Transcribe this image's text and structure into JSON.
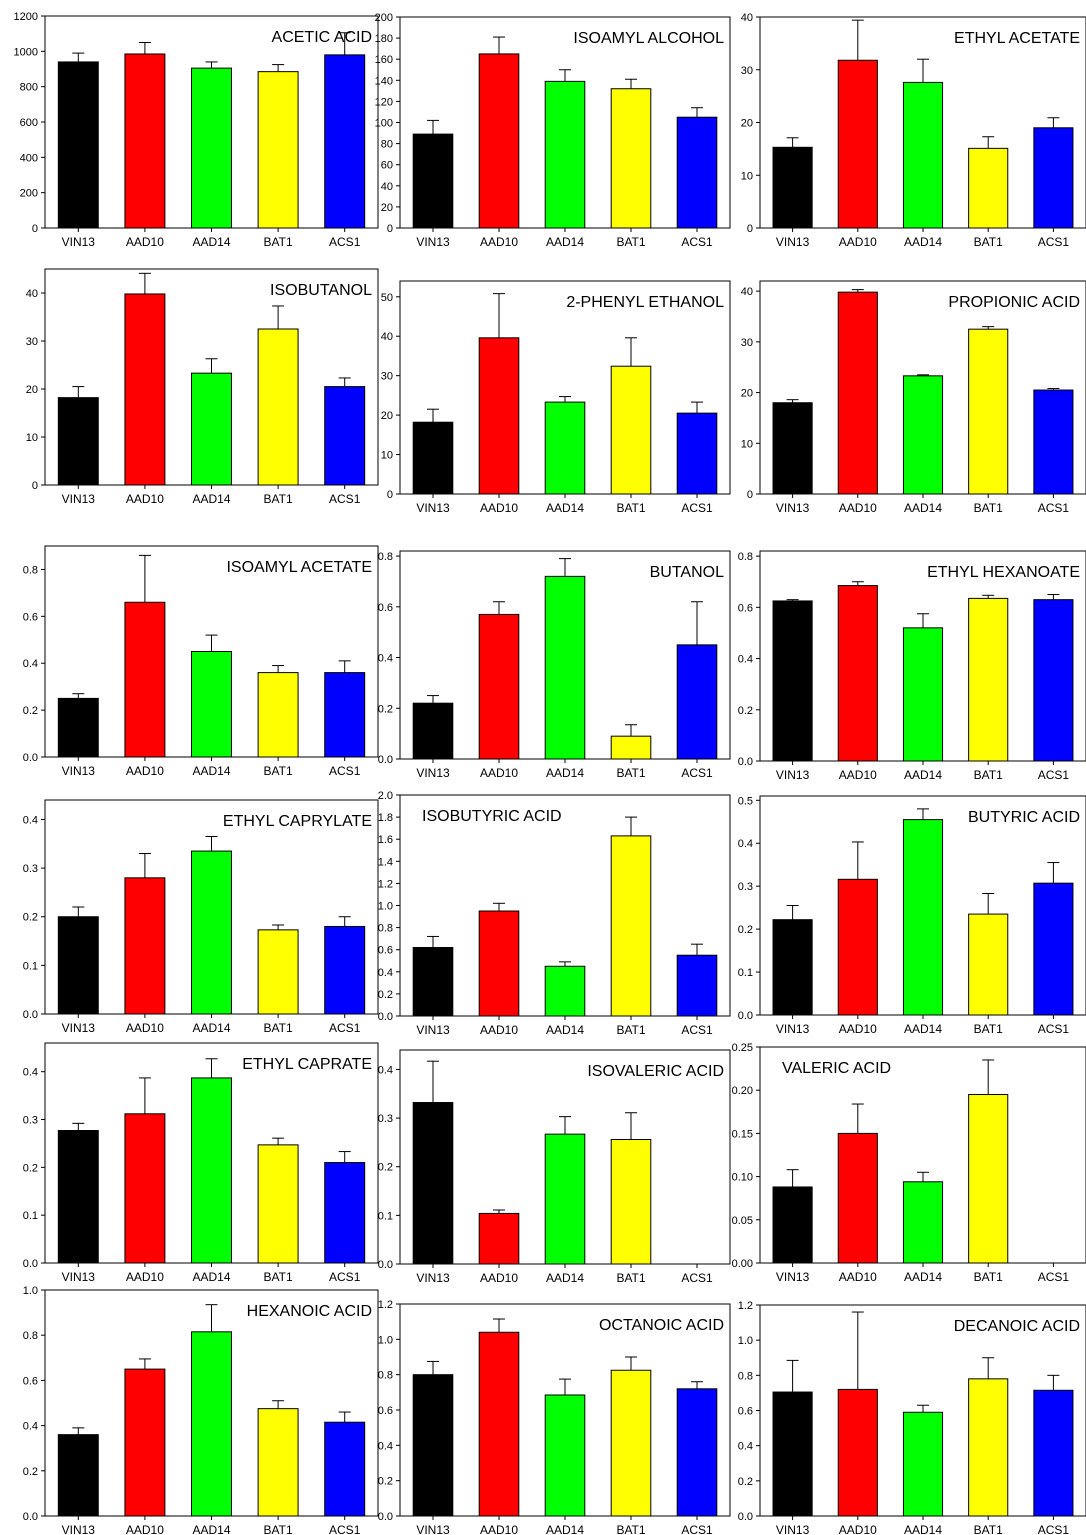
{
  "colors": {
    "VIN13": "#000000",
    "AAD10": "#ff0000",
    "AAD14": "#00ff00",
    "BAT1": "#ffff00",
    "ACS1": "#0000ff"
  },
  "chart_data": [
    {
      "type": "bar",
      "title": "ACETIC ACID",
      "categories": [
        "VIN13",
        "AAD10",
        "AAD14",
        "BAT1",
        "ACS1"
      ],
      "values": [
        940,
        985,
        905,
        885,
        980
      ],
      "errors": [
        50,
        65,
        35,
        40,
        125
      ],
      "ylim": [
        0,
        1200
      ],
      "yticks": [
        "0",
        "200",
        "400",
        "600",
        "800",
        "1000",
        "1200"
      ],
      "title_align": "right"
    },
    {
      "type": "bar",
      "title": "ISOAMYL ALCOHOL",
      "categories": [
        "VIN13",
        "AAD10",
        "AAD14",
        "BAT1",
        "ACS1"
      ],
      "values": [
        89,
        165,
        139,
        132,
        105
      ],
      "errors": [
        13,
        16,
        11,
        9,
        9
      ],
      "ylim": [
        0,
        200
      ],
      "yticks": [
        "0",
        "20",
        "40",
        "60",
        "80",
        "100",
        "120",
        "140",
        "160",
        "180",
        "200"
      ],
      "title_align": "right"
    },
    {
      "type": "bar",
      "title": "ETHYL ACETATE",
      "categories": [
        "VIN13",
        "AAD10",
        "AAD14",
        "BAT1",
        "ACS1"
      ],
      "values": [
        15.3,
        31.8,
        27.6,
        15.1,
        19.0
      ],
      "errors": [
        1.8,
        7.6,
        4.4,
        2.2,
        1.9
      ],
      "ylim": [
        0,
        40
      ],
      "yticks": [
        "0",
        "10",
        "20",
        "30",
        "40"
      ],
      "title_align": "right"
    },
    {
      "type": "bar",
      "title": "ISOBUTANOL",
      "categories": [
        "VIN13",
        "AAD10",
        "AAD14",
        "BAT1",
        "ACS1"
      ],
      "values": [
        18.2,
        39.8,
        23.3,
        32.5,
        20.5
      ],
      "errors": [
        2.3,
        4.3,
        3.0,
        4.8,
        1.8
      ],
      "ylim": [
        0,
        45
      ],
      "yticks": [
        "0",
        "10",
        "20",
        "30",
        "40"
      ],
      "title_align": "right"
    },
    {
      "type": "bar",
      "title": "2-PHENYL ETHANOL",
      "categories": [
        "VIN13",
        "AAD10",
        "AAD14",
        "BAT1",
        "ACS1"
      ],
      "values": [
        18.2,
        39.6,
        23.3,
        32.4,
        20.5
      ],
      "errors": [
        3.3,
        11.2,
        1.4,
        7.2,
        2.8
      ],
      "ylim": [
        0,
        54
      ],
      "yticks": [
        "0",
        "10",
        "20",
        "30",
        "40",
        "50"
      ],
      "title_align": "right"
    },
    {
      "type": "bar",
      "title": "PROPIONIC ACID",
      "categories": [
        "VIN13",
        "AAD10",
        "AAD14",
        "BAT1",
        "ACS1"
      ],
      "values": [
        18.0,
        39.8,
        23.3,
        32.5,
        20.5
      ],
      "errors": [
        0.6,
        0.5,
        0.2,
        0.5,
        0.3
      ],
      "ylim": [
        0,
        42
      ],
      "yticks": [
        "0",
        "10",
        "20",
        "30",
        "40"
      ],
      "title_align": "right"
    },
    {
      "type": "bar",
      "title": "ISOAMYL ACETATE",
      "categories": [
        "VIN13",
        "AAD10",
        "AAD14",
        "BAT1",
        "ACS1"
      ],
      "values": [
        0.25,
        0.66,
        0.45,
        0.36,
        0.36
      ],
      "errors": [
        0.02,
        0.2,
        0.07,
        0.03,
        0.05
      ],
      "ylim": [
        0,
        0.9
      ],
      "yticks": [
        "0.0",
        "0.2",
        "0.4",
        "0.6",
        "0.8"
      ],
      "title_align": "right"
    },
    {
      "type": "bar",
      "title": "BUTANOL",
      "categories": [
        "VIN13",
        "AAD10",
        "AAD14",
        "BAT1",
        "ACS1"
      ],
      "values": [
        0.22,
        0.57,
        0.72,
        0.09,
        0.45
      ],
      "errors": [
        0.03,
        0.05,
        0.07,
        0.045,
        0.17
      ],
      "ylim": [
        0,
        0.82
      ],
      "yticks": [
        "0.0",
        "0.2",
        "0.4",
        "0.6",
        "0.8"
      ],
      "title_align": "right"
    },
    {
      "type": "bar",
      "title": "ETHYL HEXANOATE",
      "categories": [
        "VIN13",
        "AAD10",
        "AAD14",
        "BAT1",
        "ACS1"
      ],
      "values": [
        0.625,
        0.685,
        0.52,
        0.635,
        0.63
      ],
      "errors": [
        0.005,
        0.015,
        0.055,
        0.012,
        0.02
      ],
      "ylim": [
        0,
        0.82
      ],
      "yticks": [
        "0.0",
        "0.2",
        "0.4",
        "0.6",
        "0.8"
      ],
      "title_align": "right"
    },
    {
      "type": "bar",
      "title": "ETHYL CAPRYLATE",
      "categories": [
        "VIN13",
        "AAD10",
        "AAD14",
        "BAT1",
        "ACS1"
      ],
      "values": [
        0.2,
        0.28,
        0.335,
        0.173,
        0.18
      ],
      "errors": [
        0.02,
        0.05,
        0.03,
        0.01,
        0.02
      ],
      "ylim": [
        0,
        0.44
      ],
      "yticks": [
        "0.0",
        "0.1",
        "0.2",
        "0.3",
        "0.4"
      ],
      "title_align": "right"
    },
    {
      "type": "bar",
      "title": "ISOBUTYRIC ACID",
      "categories": [
        "VIN13",
        "AAD10",
        "AAD14",
        "BAT1",
        "ACS1"
      ],
      "values": [
        0.62,
        0.95,
        0.45,
        1.63,
        0.55
      ],
      "errors": [
        0.1,
        0.07,
        0.04,
        0.17,
        0.1
      ],
      "ylim": [
        0,
        2.0
      ],
      "yticks": [
        "0.0",
        "0.2",
        "0.4",
        "0.6",
        "0.8",
        "1.0",
        "1.2",
        "1.4",
        "1.6",
        "1.8",
        "2.0"
      ],
      "title_align": "left"
    },
    {
      "type": "bar",
      "title": "BUTYRIC ACID",
      "categories": [
        "VIN13",
        "AAD10",
        "AAD14",
        "BAT1",
        "ACS1"
      ],
      "values": [
        0.222,
        0.316,
        0.455,
        0.235,
        0.307
      ],
      "errors": [
        0.033,
        0.087,
        0.025,
        0.048,
        0.048
      ],
      "ylim": [
        0,
        0.51
      ],
      "yticks": [
        "0.0",
        "0.1",
        "0.2",
        "0.3",
        "0.4",
        "0.5"
      ],
      "title_align": "right"
    },
    {
      "type": "bar",
      "title": "ETHYL CAPRATE",
      "categories": [
        "VIN13",
        "AAD10",
        "AAD14",
        "BAT1",
        "ACS1"
      ],
      "values": [
        0.277,
        0.312,
        0.387,
        0.247,
        0.21
      ],
      "errors": [
        0.015,
        0.075,
        0.04,
        0.014,
        0.023
      ],
      "ylim": [
        0,
        0.46
      ],
      "yticks": [
        "0.0",
        "0.1",
        "0.2",
        "0.3",
        "0.4"
      ],
      "title_align": "right"
    },
    {
      "type": "bar",
      "title": "ISOVALERIC ACID",
      "categories": [
        "VIN13",
        "AAD10",
        "AAD14",
        "BAT1",
        "ACS1"
      ],
      "values": [
        0.332,
        0.104,
        0.267,
        0.256,
        null
      ],
      "errors": [
        0.085,
        0.007,
        0.036,
        0.055,
        null
      ],
      "ylim": [
        0,
        0.44
      ],
      "yticks": [
        "0.0",
        "0.1",
        "0.2",
        "0.3",
        "0.4"
      ],
      "title_align": "right"
    },
    {
      "type": "bar",
      "title": "VALERIC ACID",
      "categories": [
        "VIN13",
        "AAD10",
        "AAD14",
        "BAT1",
        "ACS1"
      ],
      "values": [
        0.088,
        0.15,
        0.094,
        0.195,
        null
      ],
      "errors": [
        0.02,
        0.034,
        0.011,
        0.04,
        null
      ],
      "ylim": [
        0,
        0.25
      ],
      "yticks": [
        "0.00",
        "0.05",
        "0.10",
        "0.15",
        "0.20",
        "0.25"
      ],
      "title_align": "left"
    },
    {
      "type": "bar",
      "title": "HEXANOIC ACID",
      "categories": [
        "VIN13",
        "AAD10",
        "AAD14",
        "BAT1",
        "ACS1"
      ],
      "values": [
        0.36,
        0.65,
        0.815,
        0.475,
        0.415
      ],
      "errors": [
        0.03,
        0.045,
        0.12,
        0.035,
        0.045
      ],
      "ylim": [
        0,
        1.0
      ],
      "yticks": [
        "0.0",
        "0.2",
        "0.4",
        "0.6",
        "0.8",
        "1.0"
      ],
      "title_align": "right"
    },
    {
      "type": "bar",
      "title": "OCTANOIC ACID",
      "categories": [
        "VIN13",
        "AAD10",
        "AAD14",
        "BAT1",
        "ACS1"
      ],
      "values": [
        0.8,
        1.04,
        0.685,
        0.825,
        0.72
      ],
      "errors": [
        0.075,
        0.075,
        0.09,
        0.075,
        0.04
      ],
      "ylim": [
        0,
        1.2
      ],
      "yticks": [
        "0.0",
        "0.2",
        "0.4",
        "0.6",
        "0.8",
        "1.0",
        "1.2"
      ],
      "title_align": "right"
    },
    {
      "type": "bar",
      "title": "DECANOIC ACID",
      "categories": [
        "VIN13",
        "AAD10",
        "AAD14",
        "BAT1",
        "ACS1"
      ],
      "values": [
        0.705,
        0.72,
        0.59,
        0.78,
        0.715
      ],
      "errors": [
        0.18,
        0.44,
        0.04,
        0.12,
        0.085
      ],
      "ylim": [
        0,
        1.2
      ],
      "yticks": [
        "0.0",
        "0.2",
        "0.4",
        "0.6",
        "0.8",
        "1.0",
        "1.2"
      ],
      "title_align": "right"
    }
  ]
}
